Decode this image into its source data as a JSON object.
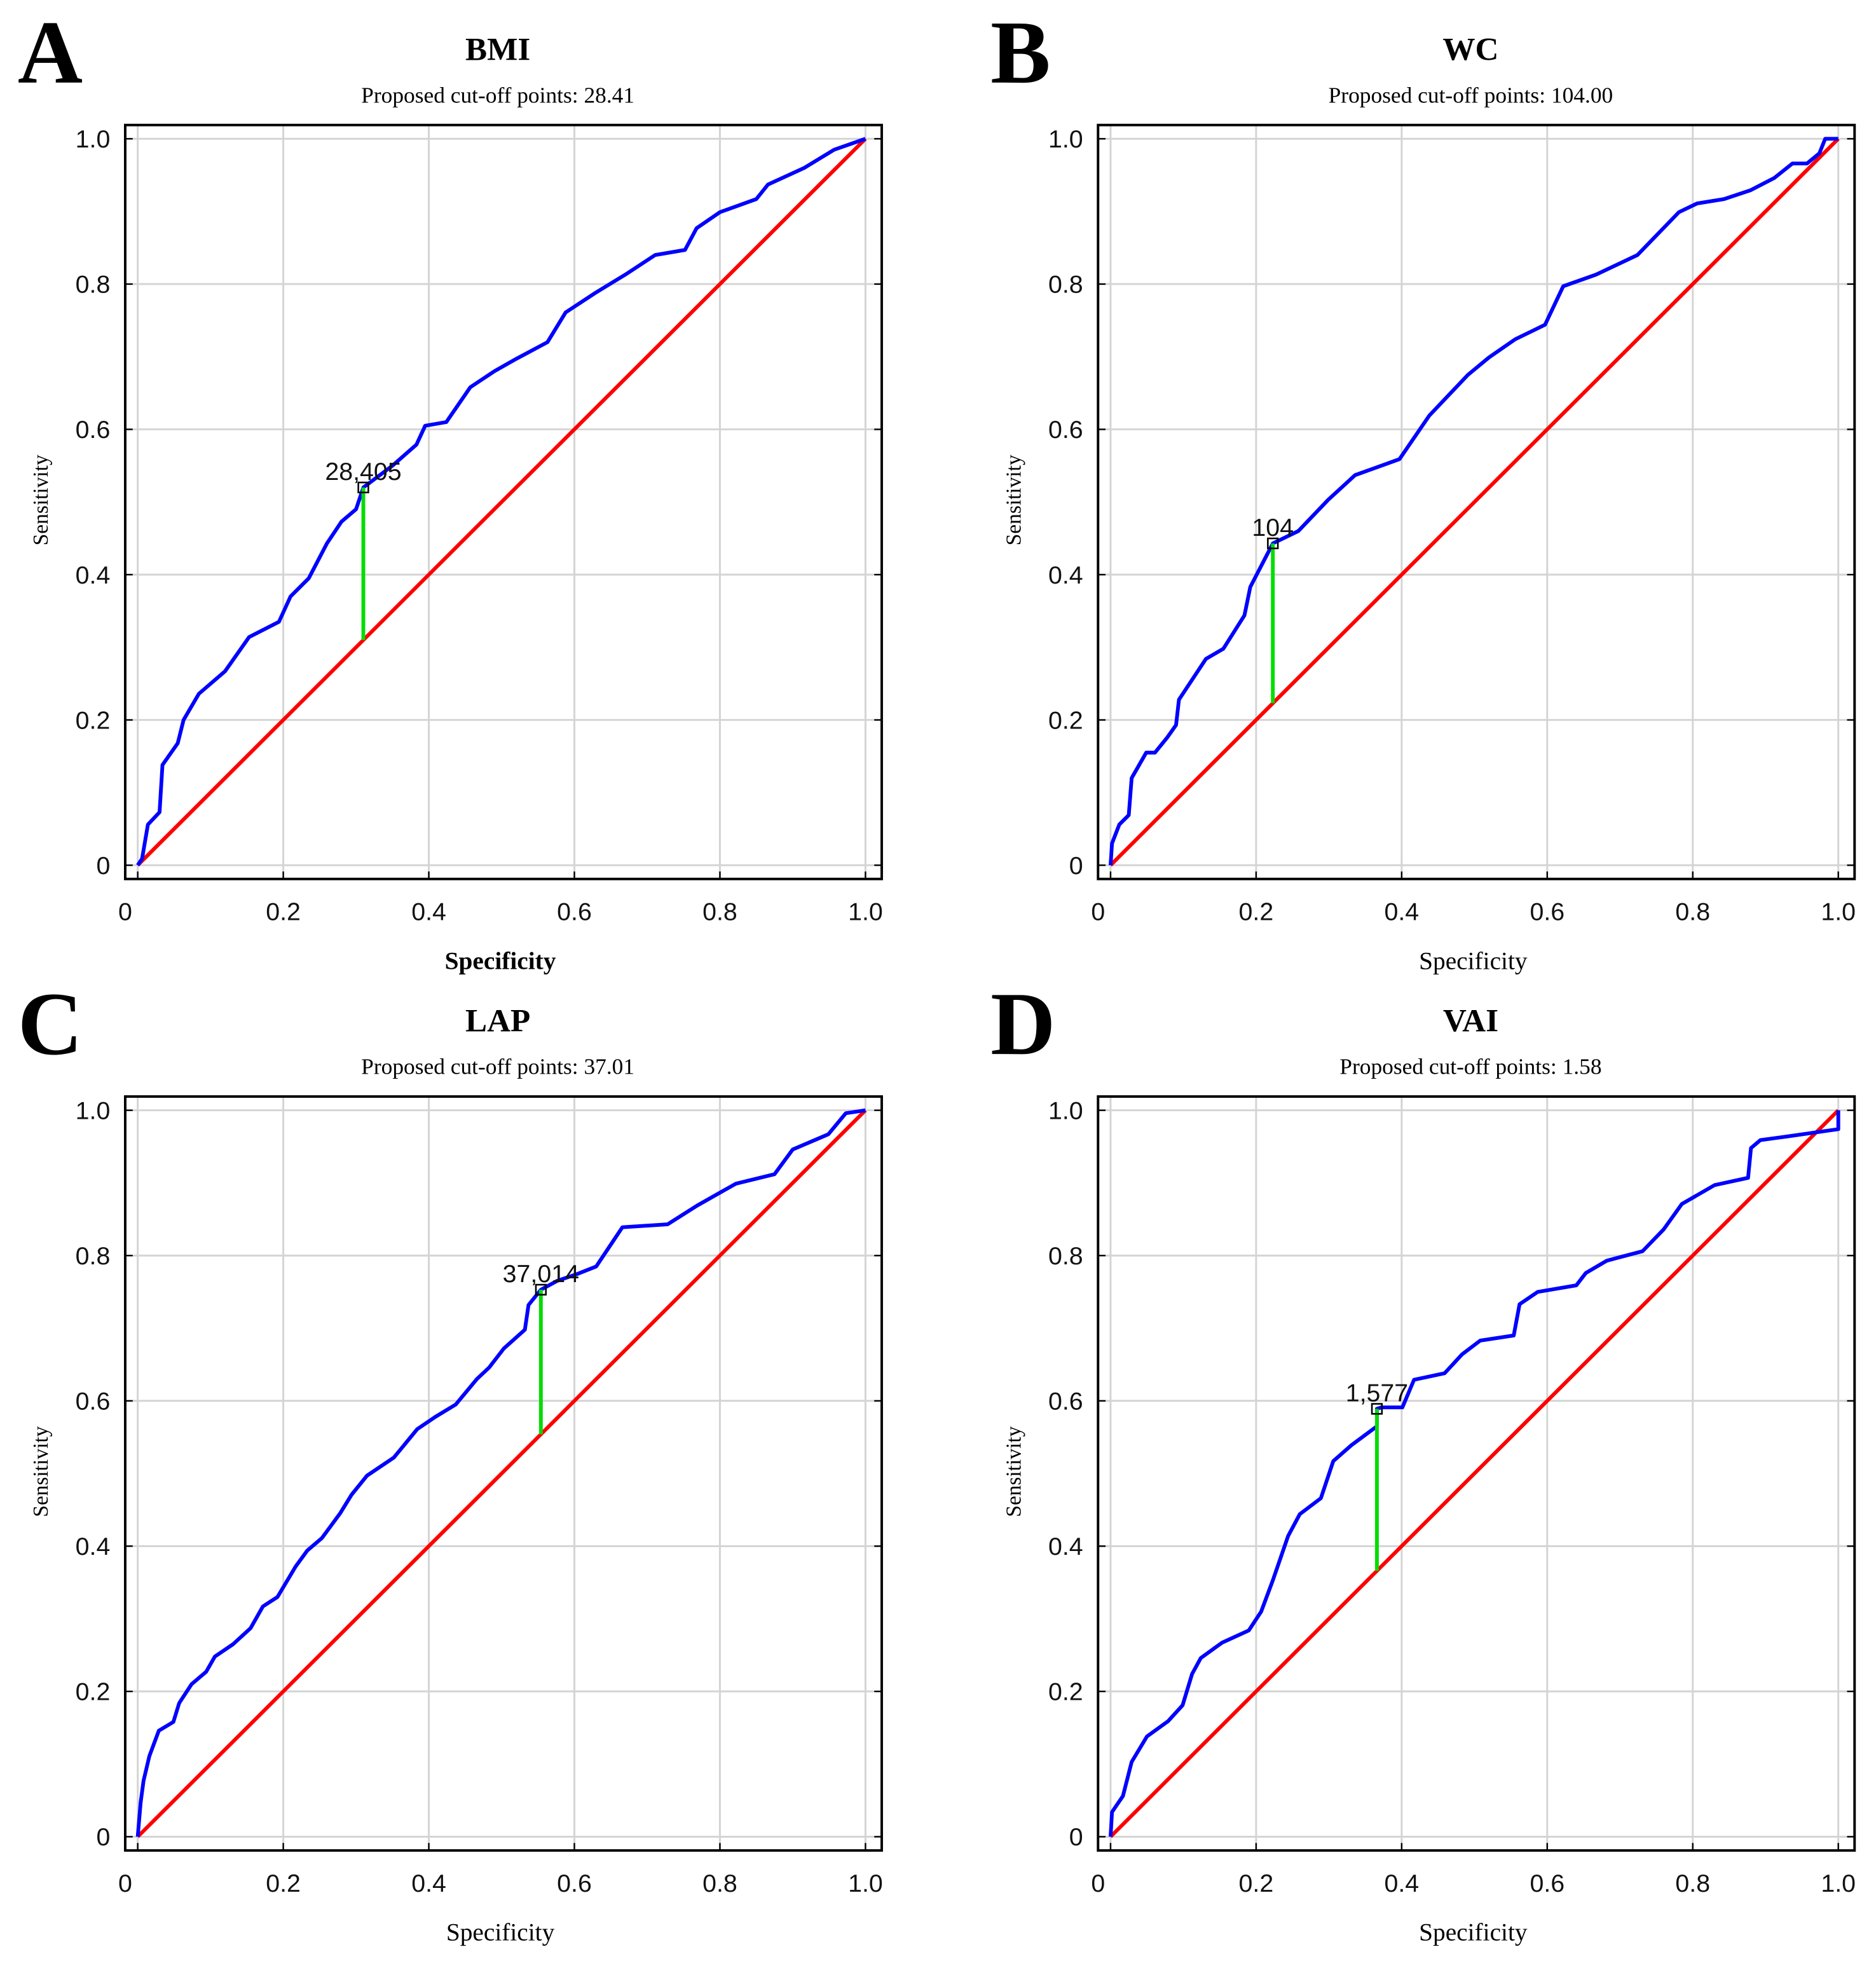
{
  "chart_data": [
    {
      "type": "line",
      "panel_letter": "A",
      "title": "BMI",
      "subtitle": "Proposed cut-off points: 28.41",
      "xlabel": "Specificity",
      "xlabel_bold": true,
      "ylabel": "Sensitivity",
      "xlim": [
        0,
        1
      ],
      "ylim": [
        0,
        1
      ],
      "x_ticks": [
        "0",
        "0.2",
        "0.4",
        "0.6",
        "0.8",
        "1.0"
      ],
      "y_ticks": [
        "0",
        "0.2",
        "0.4",
        "0.6",
        "0.8",
        "1.0"
      ],
      "grid": true,
      "series": [
        {
          "name": "ROC",
          "color": "#0000ff",
          "points": [
            [
              0,
              0
            ],
            [
              0.006,
              0.009
            ],
            [
              0.014,
              0.056
            ],
            [
              0.03,
              0.073
            ],
            [
              0.034,
              0.138
            ],
            [
              0.055,
              0.168
            ],
            [
              0.063,
              0.2
            ],
            [
              0.084,
              0.236
            ],
            [
              0.12,
              0.267
            ],
            [
              0.153,
              0.314
            ],
            [
              0.194,
              0.335
            ],
            [
              0.21,
              0.37
            ],
            [
              0.235,
              0.395
            ],
            [
              0.26,
              0.443
            ],
            [
              0.28,
              0.473
            ],
            [
              0.3,
              0.49
            ],
            [
              0.31,
              0.52
            ],
            [
              0.35,
              0.55
            ],
            [
              0.383,
              0.579
            ],
            [
              0.395,
              0.605
            ],
            [
              0.424,
              0.61
            ],
            [
              0.457,
              0.658
            ],
            [
              0.49,
              0.68
            ],
            [
              0.52,
              0.697
            ],
            [
              0.563,
              0.72
            ],
            [
              0.588,
              0.761
            ],
            [
              0.629,
              0.788
            ],
            [
              0.67,
              0.813
            ],
            [
              0.711,
              0.84
            ],
            [
              0.752,
              0.847
            ],
            [
              0.768,
              0.877
            ],
            [
              0.8,
              0.899
            ],
            [
              0.85,
              0.917
            ],
            [
              0.866,
              0.937
            ],
            [
              0.916,
              0.96
            ],
            [
              0.957,
              0.985
            ],
            [
              1,
              1
            ]
          ]
        },
        {
          "name": "Reference",
          "color": "#ff0000",
          "points": [
            [
              0,
              0
            ],
            [
              1,
              1
            ]
          ]
        }
      ],
      "cutoff": {
        "x": 0.31,
        "y": 0.52,
        "label": "28,405",
        "color": "#00dd00"
      }
    },
    {
      "type": "line",
      "panel_letter": "B",
      "title": "WC",
      "subtitle": "Proposed cut-off points: 104.00",
      "xlabel": "Specificity",
      "xlabel_bold": false,
      "ylabel": "Sensitivity",
      "xlim": [
        0,
        1
      ],
      "ylim": [
        0,
        1
      ],
      "x_ticks": [
        "0",
        "0.2",
        "0.4",
        "0.6",
        "0.8",
        "1.0"
      ],
      "y_ticks": [
        "0",
        "0.2",
        "0.4",
        "0.6",
        "0.8",
        "1.0"
      ],
      "grid": true,
      "series": [
        {
          "name": "ROC",
          "color": "#0000ff",
          "points": [
            [
              0,
              0
            ],
            [
              0.002,
              0.03
            ],
            [
              0.012,
              0.056
            ],
            [
              0.025,
              0.069
            ],
            [
              0.029,
              0.12
            ],
            [
              0.049,
              0.155
            ],
            [
              0.061,
              0.155
            ],
            [
              0.078,
              0.176
            ],
            [
              0.09,
              0.193
            ],
            [
              0.094,
              0.228
            ],
            [
              0.131,
              0.284
            ],
            [
              0.155,
              0.298
            ],
            [
              0.184,
              0.344
            ],
            [
              0.192,
              0.383
            ],
            [
              0.223,
              0.443
            ],
            [
              0.258,
              0.46
            ],
            [
              0.299,
              0.503
            ],
            [
              0.336,
              0.537
            ],
            [
              0.397,
              0.559
            ],
            [
              0.438,
              0.619
            ],
            [
              0.491,
              0.675
            ],
            [
              0.52,
              0.699
            ],
            [
              0.556,
              0.724
            ],
            [
              0.597,
              0.744
            ],
            [
              0.622,
              0.797
            ],
            [
              0.667,
              0.813
            ],
            [
              0.724,
              0.84
            ],
            [
              0.781,
              0.899
            ],
            [
              0.806,
              0.911
            ],
            [
              0.843,
              0.917
            ],
            [
              0.879,
              0.929
            ],
            [
              0.912,
              0.946
            ],
            [
              0.937,
              0.966
            ],
            [
              0.957,
              0.966
            ],
            [
              0.974,
              0.98
            ],
            [
              0.982,
              1
            ],
            [
              1,
              1
            ]
          ]
        },
        {
          "name": "Reference",
          "color": "#ff0000",
          "points": [
            [
              0,
              0
            ],
            [
              1,
              1
            ]
          ]
        }
      ],
      "cutoff": {
        "x": 0.223,
        "y": 0.443,
        "label": "104",
        "color": "#00dd00"
      }
    },
    {
      "type": "line",
      "panel_letter": "C",
      "title": "LAP",
      "subtitle": "Proposed cut-off points: 37.01",
      "xlabel": "Specificity",
      "xlabel_bold": false,
      "ylabel": "Sensitivity",
      "xlim": [
        0,
        1
      ],
      "ylim": [
        0,
        1
      ],
      "x_ticks": [
        "0",
        "0.2",
        "0.4",
        "0.6",
        "0.8",
        "1.0"
      ],
      "y_ticks": [
        "0",
        "0.2",
        "0.4",
        "0.6",
        "0.8",
        "1.0"
      ],
      "grid": true,
      "series": [
        {
          "name": "ROC",
          "color": "#0000ff",
          "points": [
            [
              0,
              0
            ],
            [
              0.004,
              0.047
            ],
            [
              0.008,
              0.077
            ],
            [
              0.016,
              0.111
            ],
            [
              0.029,
              0.146
            ],
            [
              0.049,
              0.158
            ],
            [
              0.057,
              0.184
            ],
            [
              0.074,
              0.21
            ],
            [
              0.094,
              0.227
            ],
            [
              0.106,
              0.248
            ],
            [
              0.131,
              0.265
            ],
            [
              0.155,
              0.287
            ],
            [
              0.172,
              0.317
            ],
            [
              0.192,
              0.33
            ],
            [
              0.217,
              0.372
            ],
            [
              0.233,
              0.394
            ],
            [
              0.253,
              0.411
            ],
            [
              0.278,
              0.445
            ],
            [
              0.294,
              0.471
            ],
            [
              0.315,
              0.497
            ],
            [
              0.352,
              0.522
            ],
            [
              0.384,
              0.561
            ],
            [
              0.409,
              0.578
            ],
            [
              0.437,
              0.595
            ],
            [
              0.466,
              0.63
            ],
            [
              0.483,
              0.646
            ],
            [
              0.503,
              0.672
            ],
            [
              0.532,
              0.698
            ],
            [
              0.537,
              0.732
            ],
            [
              0.554,
              0.753
            ],
            [
              0.576,
              0.765
            ],
            [
              0.605,
              0.775
            ],
            [
              0.63,
              0.785
            ],
            [
              0.646,
              0.809
            ],
            [
              0.666,
              0.839
            ],
            [
              0.728,
              0.843
            ],
            [
              0.769,
              0.869
            ],
            [
              0.822,
              0.899
            ],
            [
              0.875,
              0.912
            ],
            [
              0.9,
              0.946
            ],
            [
              0.949,
              0.967
            ],
            [
              0.973,
              0.996
            ],
            [
              1,
              1
            ]
          ]
        },
        {
          "name": "Reference",
          "color": "#ff0000",
          "points": [
            [
              0,
              0
            ],
            [
              1,
              1
            ]
          ]
        }
      ],
      "cutoff": {
        "x": 0.554,
        "y": 0.753,
        "label": "37,014",
        "color": "#00dd00"
      }
    },
    {
      "type": "line",
      "panel_letter": "D",
      "title": "VAI",
      "subtitle": "Proposed cut-off points: 1.58",
      "xlabel": "Specificity",
      "xlabel_bold": false,
      "ylabel": "Sensitivity",
      "xlim": [
        0,
        1
      ],
      "ylim": [
        0,
        1
      ],
      "x_ticks": [
        "0",
        "0.2",
        "0.4",
        "0.6",
        "0.8",
        "1.0"
      ],
      "y_ticks": [
        "0",
        "0.2",
        "0.4",
        "0.6",
        "0.8",
        "1.0"
      ],
      "grid": true,
      "series": [
        {
          "name": "ROC",
          "color": "#0000ff",
          "points": [
            [
              0,
              0
            ],
            [
              0.002,
              0.034
            ],
            [
              0.017,
              0.056
            ],
            [
              0.029,
              0.103
            ],
            [
              0.05,
              0.138
            ],
            [
              0.079,
              0.159
            ],
            [
              0.099,
              0.181
            ],
            [
              0.112,
              0.224
            ],
            [
              0.124,
              0.246
            ],
            [
              0.153,
              0.267
            ],
            [
              0.19,
              0.284
            ],
            [
              0.207,
              0.31
            ],
            [
              0.223,
              0.353
            ],
            [
              0.244,
              0.414
            ],
            [
              0.26,
              0.444
            ],
            [
              0.289,
              0.466
            ],
            [
              0.306,
              0.517
            ],
            [
              0.331,
              0.539
            ],
            [
              0.366,
              0.565
            ],
            [
              0.366,
              0.589
            ],
            [
              0.372,
              0.591
            ],
            [
              0.401,
              0.591
            ],
            [
              0.417,
              0.629
            ],
            [
              0.459,
              0.638
            ],
            [
              0.483,
              0.664
            ],
            [
              0.508,
              0.683
            ],
            [
              0.554,
              0.69
            ],
            [
              0.562,
              0.733
            ],
            [
              0.587,
              0.75
            ],
            [
              0.64,
              0.759
            ],
            [
              0.653,
              0.776
            ],
            [
              0.682,
              0.793
            ],
            [
              0.731,
              0.806
            ],
            [
              0.76,
              0.836
            ],
            [
              0.785,
              0.871
            ],
            [
              0.83,
              0.897
            ],
            [
              0.876,
              0.907
            ],
            [
              0.88,
              0.948
            ],
            [
              0.893,
              0.959
            ],
            [
              0.93,
              0.964
            ],
            [
              1,
              0.974
            ],
            [
              1,
              1
            ]
          ]
        },
        {
          "name": "Reference",
          "color": "#ff0000",
          "points": [
            [
              0,
              0
            ],
            [
              1,
              1
            ]
          ]
        }
      ],
      "cutoff": {
        "x": 0.366,
        "y": 0.589,
        "label": "1,577",
        "color": "#00dd00"
      }
    }
  ]
}
